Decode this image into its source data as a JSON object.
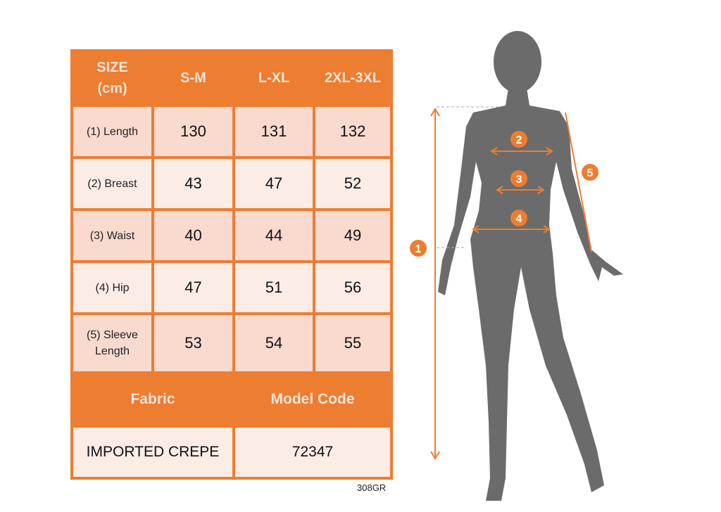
{
  "table": {
    "header": [
      "SIZE (cm)",
      "S-M",
      "L-XL",
      "2XL-3XL"
    ],
    "rows": [
      {
        "label": "(1) Length",
        "values": [
          "130",
          "131",
          "132"
        ]
      },
      {
        "label": "(2) Breast",
        "values": [
          "43",
          "47",
          "52"
        ]
      },
      {
        "label": "(3) Waist",
        "values": [
          "40",
          "44",
          "49"
        ]
      },
      {
        "label": "(4) Hip",
        "values": [
          "47",
          "51",
          "56"
        ]
      },
      {
        "label": "(5) Sleeve Length",
        "values": [
          "53",
          "54",
          "55"
        ]
      }
    ],
    "footer_headers": [
      "Fabric",
      "Model Code"
    ],
    "footer_values": [
      "IMPORTED CREPE",
      "72347"
    ]
  },
  "product_code": "308GR",
  "figure": {
    "markers": [
      "1",
      "2",
      "3",
      "4",
      "5"
    ]
  },
  "colors": {
    "accent": "#ED7D31",
    "row_dark": "#F8DACE",
    "row_light": "#FCECE6",
    "silhouette": "#6B6B6B"
  }
}
